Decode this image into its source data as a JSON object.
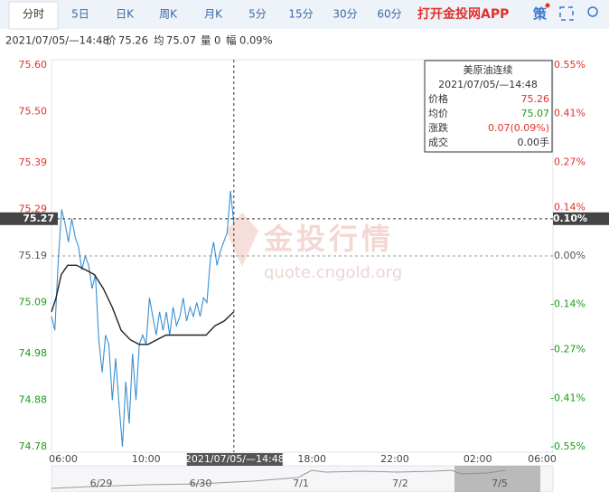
{
  "tabs": [
    "分时",
    "5日",
    "日K",
    "周K",
    "月K",
    "5分",
    "15分",
    "30分",
    "60分"
  ],
  "app_link": "打开金投网APP",
  "strategy": "策",
  "info": {
    "time": "2021/07/05/—14:48",
    "price_label": "价",
    "price": "75.26",
    "avg_label": "均",
    "avg": "75.07",
    "vol_label": "量",
    "vol": "0",
    "amp_label": "幅",
    "amp": "0.09%"
  },
  "tooltip": {
    "title": "美原油连续",
    "time": "2021/07/05/—14:48",
    "rows": [
      [
        "价格",
        "75.26"
      ],
      [
        "均价",
        "75.07"
      ],
      [
        "涨跌",
        "0.07(0.09%)"
      ],
      [
        "成交",
        "0.00手"
      ]
    ]
  },
  "watermark": {
    "title": "金投行情",
    "url": "quote.cngold.org"
  },
  "navigator": {
    "labels": [
      "6/29",
      "6/30",
      "7/1",
      "7/2",
      "7/5"
    ]
  },
  "chart_data": {
    "type": "line",
    "xlim": [
      0,
      24.2
    ],
    "xticks": [
      {
        "value": 0,
        "label": "06:00"
      },
      {
        "value": 4,
        "label": "10:00"
      },
      {
        "value": 12,
        "label": "18:00"
      },
      {
        "value": 16,
        "label": "22:00"
      },
      {
        "value": 20,
        "label": "02:00"
      },
      {
        "value": 24,
        "label": "06:00"
      }
    ],
    "ylim": [
      74.78,
      75.6
    ],
    "yticks": [
      {
        "value": 75.6,
        "label": "75.60"
      },
      {
        "value": 75.5,
        "label": "75.50"
      },
      75.39,
      75.29,
      75.19,
      75.09,
      74.98,
      74.88,
      74.78
    ],
    "y2lim": [
      -0.55,
      0.55
    ],
    "y2ticks": [
      {
        "value": 0.55,
        "label": "0.55%"
      },
      {
        "value": 0.41,
        "label": "0.41%"
      },
      {
        "value": 0.27,
        "label": "0.27%"
      },
      {
        "value": 0.14,
        "label": "0.14%"
      },
      {
        "value": 0,
        "label": "0.00%"
      },
      {
        "value": -0.14,
        "label": "-0.14%"
      },
      {
        "value": -0.27,
        "label": "-0.27%"
      },
      {
        "value": -0.41,
        "label": "-0.41%"
      },
      {
        "value": -0.55,
        "label": "-0.55%"
      }
    ],
    "baseline": 75.19,
    "up_color": "#e0312a",
    "down_color": "#1a9a1a",
    "marker": {
      "value": 75.27,
      "pct": {
        "value": 0.1,
        "label": "0.10%"
      }
    },
    "crosshair": {
      "value": 8.8,
      "label": "2021/07/05/—14:48"
    },
    "series": [
      {
        "color": "#3a8fd0",
        "x": [
          0,
          0.163,
          0.326,
          0.489,
          0.652,
          0.815,
          0.978,
          1.141,
          1.304,
          1.467,
          1.63,
          1.793,
          1.956,
          2.119,
          2.282,
          2.445,
          2.608,
          2.771,
          2.934,
          3.097,
          3.26,
          3.423,
          3.586,
          3.749,
          3.912,
          4.075,
          4.238,
          4.401,
          4.564,
          4.727,
          4.89,
          5.053,
          5.216,
          5.379,
          5.542,
          5.705,
          5.868,
          6.031,
          6.194,
          6.357,
          6.52,
          6.683,
          6.846,
          7.009,
          7.172,
          7.335,
          7.498,
          7.661,
          7.824,
          7.987,
          8.15,
          8.313,
          8.476,
          8.639,
          8.8
        ],
        "values": [
          75.06,
          75.03,
          75.18,
          75.29,
          75.26,
          75.22,
          75.27,
          75.23,
          75.21,
          75.16,
          75.19,
          75.17,
          75.12,
          75.15,
          75.01,
          74.94,
          75.02,
          75.0,
          74.88,
          74.97,
          74.87,
          74.78,
          74.92,
          74.83,
          74.98,
          74.88,
          75.0,
          75.02,
          75.0,
          75.1,
          75.06,
          75.02,
          75.07,
          75.03,
          75.07,
          75.02,
          75.08,
          75.04,
          75.06,
          75.1,
          75.05,
          75.08,
          75.06,
          75.09,
          75.06,
          75.1,
          75.09,
          75.18,
          75.22,
          75.17,
          75.2,
          75.22,
          75.24,
          75.33,
          75.26
        ]
      },
      {
        "color": "#222222",
        "x": [
          0,
          0.22,
          0.47,
          0.78,
          1.21,
          1.64,
          2.07,
          2.5,
          2.93,
          3.36,
          3.8,
          4.23,
          4.66,
          5.09,
          5.52,
          6.17,
          7.03,
          7.46,
          7.89,
          8.33,
          8.8
        ],
        "values": [
          75.07,
          75.1,
          75.15,
          75.17,
          75.17,
          75.16,
          75.15,
          75.12,
          75.08,
          75.03,
          75.01,
          75.0,
          75.0,
          75.01,
          75.02,
          75.02,
          75.02,
          75.02,
          75.04,
          75.05,
          75.07
        ]
      }
    ]
  }
}
